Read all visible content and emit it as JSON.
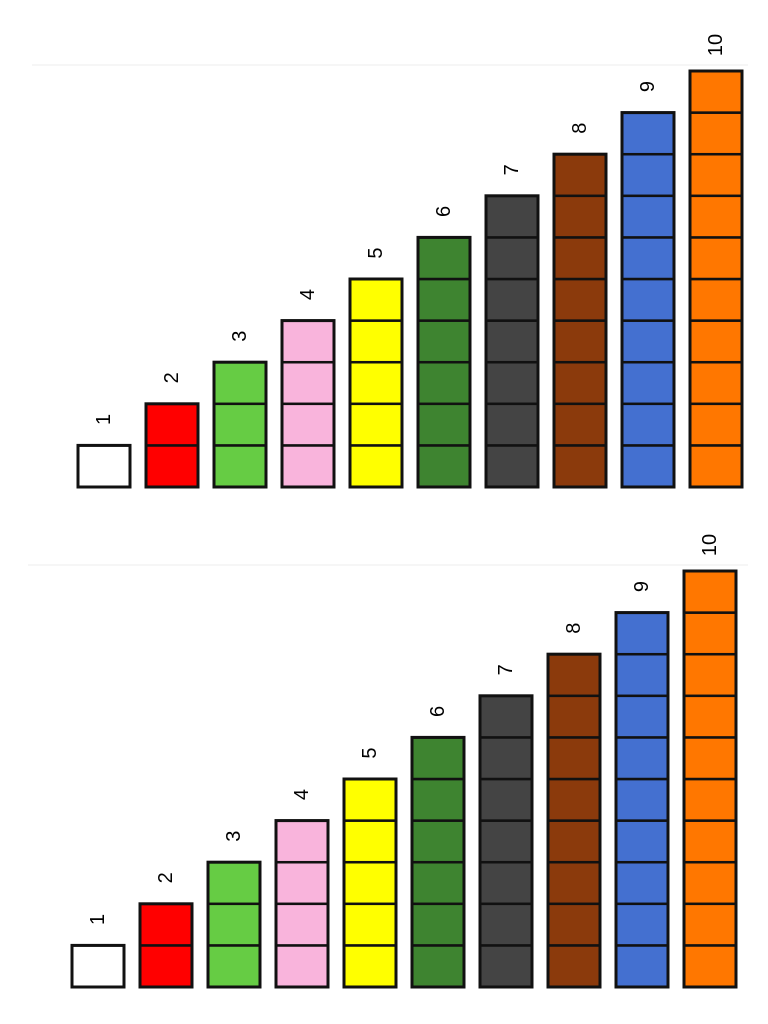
{
  "panels": [
    {
      "name": "panel-top",
      "rows": [
        {
          "label": "1",
          "count": 1,
          "color": "#ffffff"
        },
        {
          "label": "2",
          "count": 2,
          "color": "#ff0000"
        },
        {
          "label": "3",
          "count": 3,
          "color": "#66cc44"
        },
        {
          "label": "4",
          "count": 4,
          "color": "#f9b4dc"
        },
        {
          "label": "5",
          "count": 5,
          "color": "#ffff00"
        },
        {
          "label": "6",
          "count": 6,
          "color": "#3e8430"
        },
        {
          "label": "7",
          "count": 7,
          "color": "#444444"
        },
        {
          "label": "8",
          "count": 8,
          "color": "#8b3a0c"
        },
        {
          "label": "9",
          "count": 9,
          "color": "#4470d0"
        },
        {
          "label": "10",
          "count": 10,
          "color": "#ff7700"
        }
      ]
    },
    {
      "name": "panel-bottom",
      "rows": [
        {
          "label": "1",
          "count": 1,
          "color": "#ffffff"
        },
        {
          "label": "2",
          "count": 2,
          "color": "#ff0000"
        },
        {
          "label": "3",
          "count": 3,
          "color": "#66cc44"
        },
        {
          "label": "4",
          "count": 4,
          "color": "#f9b4dc"
        },
        {
          "label": "5",
          "count": 5,
          "color": "#ffff00"
        },
        {
          "label": "6",
          "count": 6,
          "color": "#3e8430"
        },
        {
          "label": "7",
          "count": 7,
          "color": "#444444"
        },
        {
          "label": "8",
          "count": 8,
          "color": "#8b3a0c"
        },
        {
          "label": "9",
          "count": 9,
          "color": "#4470d0"
        },
        {
          "label": "10",
          "count": 10,
          "color": "#ff7700"
        }
      ]
    }
  ]
}
